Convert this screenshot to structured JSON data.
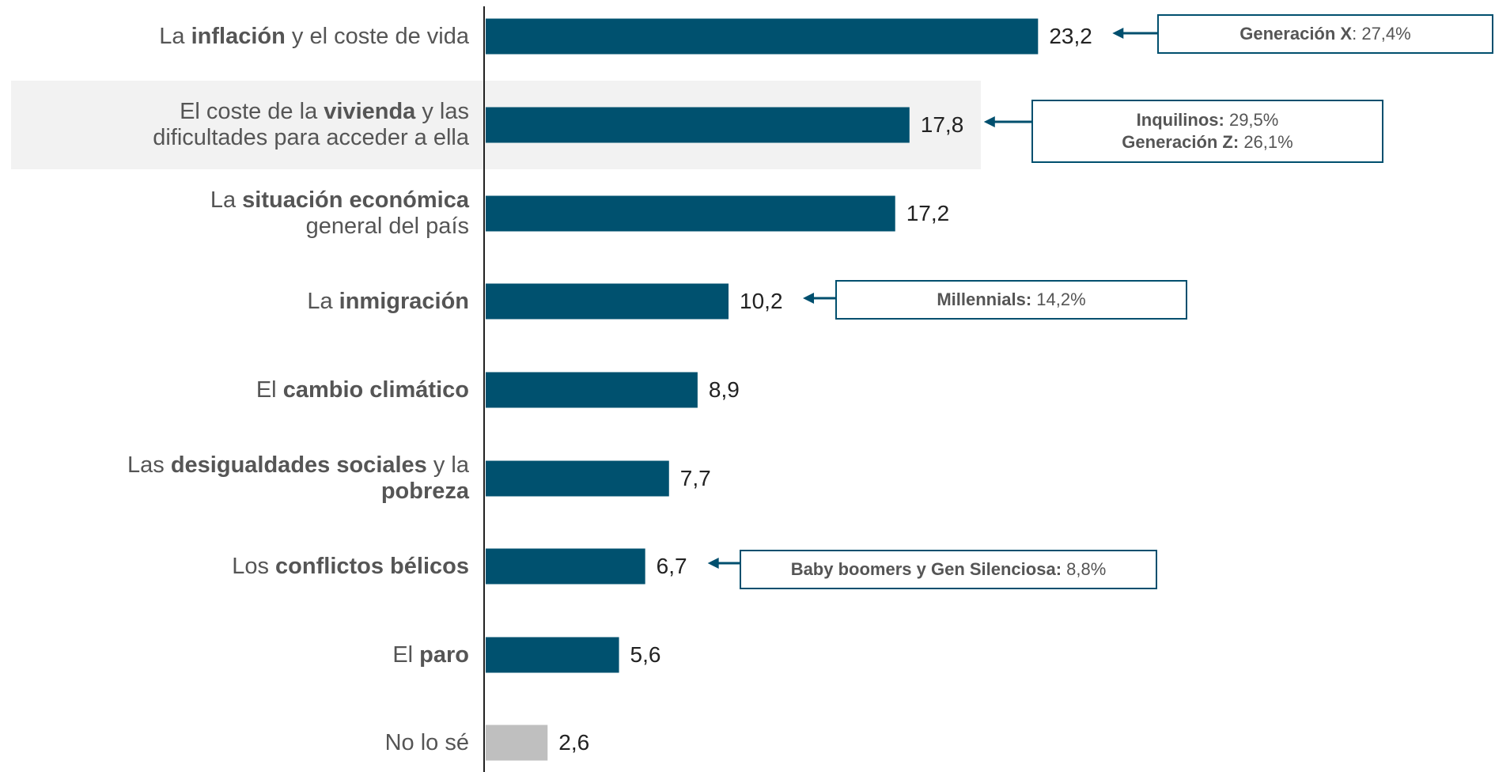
{
  "chart_data": {
    "type": "bar",
    "orientation": "horizontal",
    "categories": [
      [
        {
          "t": "La "
        },
        {
          "t": "inflación",
          "b": true
        },
        {
          "t": " y el coste de vida"
        }
      ],
      [
        {
          "t": "El coste de la "
        },
        {
          "t": "vivienda",
          "b": true
        },
        {
          "t": " y las"
        },
        {
          "br": true
        },
        {
          "t": "dificultades para acceder a ella"
        }
      ],
      [
        {
          "t": "La "
        },
        {
          "t": "situación económica",
          "b": true
        },
        {
          "br": true
        },
        {
          "t": "general del país"
        }
      ],
      [
        {
          "t": "La "
        },
        {
          "t": "inmigración",
          "b": true
        }
      ],
      [
        {
          "t": "El "
        },
        {
          "t": "cambio climático",
          "b": true
        }
      ],
      [
        {
          "t": "Las "
        },
        {
          "t": "desigualdades sociales",
          "b": true
        },
        {
          "t": " y la"
        },
        {
          "br": true
        },
        {
          "t": "pobreza",
          "b": true
        }
      ],
      [
        {
          "t": "Los "
        },
        {
          "t": "conflictos bélicos",
          "b": true
        }
      ],
      [
        {
          "t": "El "
        },
        {
          "t": "paro",
          "b": true
        }
      ],
      [
        {
          "t": "No lo sé"
        }
      ]
    ],
    "values": [
      23.2,
      17.8,
      17.2,
      10.2,
      8.9,
      7.7,
      6.7,
      5.6,
      2.6
    ],
    "value_labels": [
      "23,2",
      "17,8",
      "17,2",
      "10,2",
      "8,9",
      "7,7",
      "6,7",
      "5,6",
      "2,6"
    ],
    "bar_colors": [
      "#00516f",
      "#00516f",
      "#00516f",
      "#00516f",
      "#00516f",
      "#00516f",
      "#00516f",
      "#00516f",
      "#bfbfbf"
    ],
    "highlighted_category_index": 1,
    "highlight_color": "#f2f2f2",
    "axis_color": "#222222",
    "callouts": [
      {
        "category_index": 0,
        "lines": [
          [
            {
              "t": "Generación X",
              "b": true
            },
            {
              "t": ": 27,4%"
            }
          ]
        ]
      },
      {
        "category_index": 1,
        "lines": [
          [
            {
              "t": "Inquilinos:",
              "b": true
            },
            {
              "t": " 29,5%"
            }
          ],
          [
            {
              "t": "Generación Z:",
              "b": true
            },
            {
              "t": " 26,1%"
            }
          ]
        ]
      },
      {
        "category_index": 3,
        "lines": [
          [
            {
              "t": "Millennials:",
              "b": true
            },
            {
              "t": " 14,2%"
            }
          ]
        ]
      },
      {
        "category_index": 6,
        "lines": [
          [
            {
              "t": "Baby boomers y Gen Silenciosa:",
              "b": true
            },
            {
              "t": " 8,8%"
            }
          ]
        ]
      }
    ],
    "callout_border_color": "#004f6e",
    "arrow_color": "#004f6e"
  }
}
